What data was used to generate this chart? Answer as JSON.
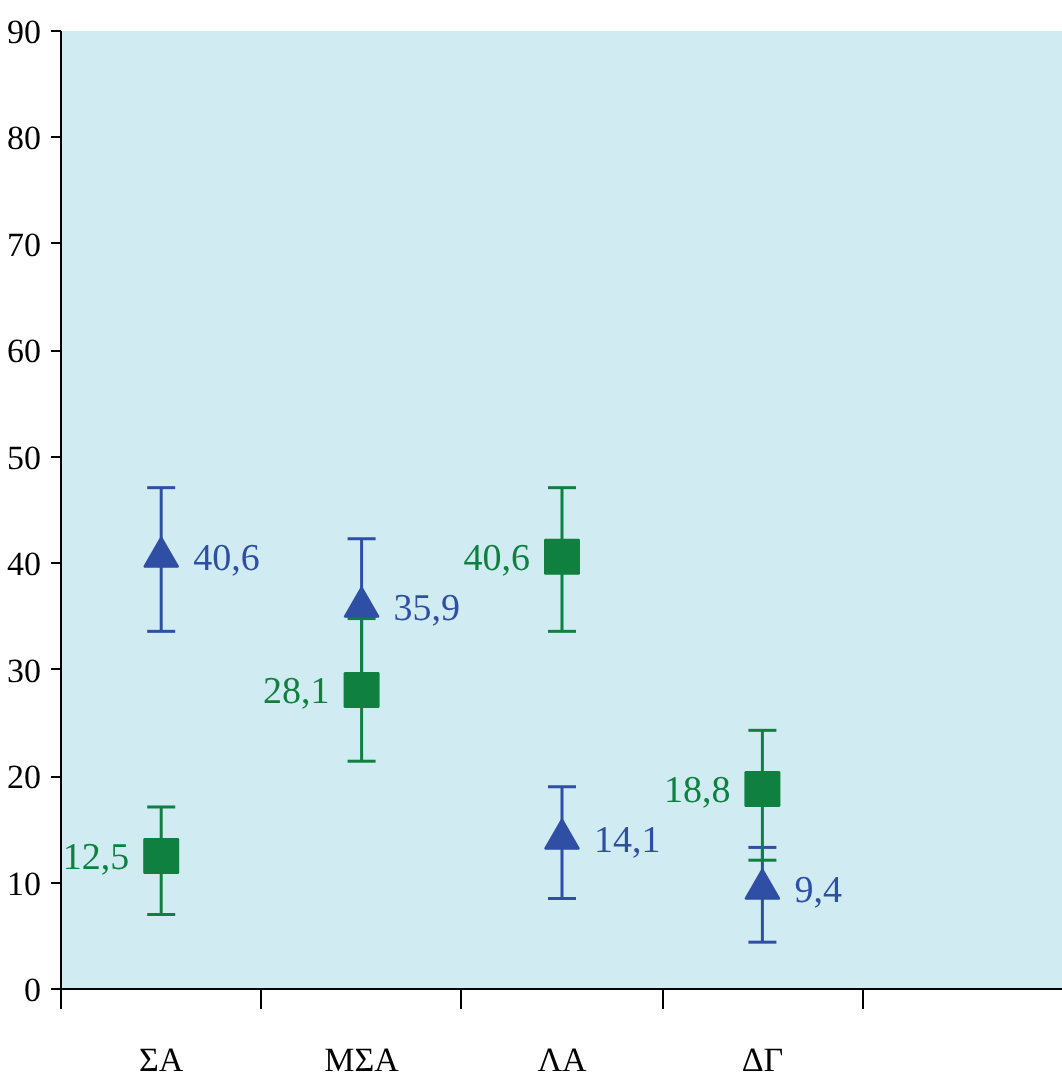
{
  "chart_data": {
    "type": "scatter",
    "categories": [
      "ΣΑ",
      "ΜΣΑ",
      "ΛΑ",
      "ΔΓ"
    ],
    "series": [
      {
        "color": "#2e4fa3",
        "marker": "triangle",
        "values": [
          40.6,
          35.9,
          14.1,
          9.4
        ],
        "errors": [
          [
            33.6,
            47.1
          ],
          [
            29.5,
            42.3
          ],
          [
            8.5,
            19.0
          ],
          [
            4.4,
            13.3
          ]
        ],
        "value_labels": [
          "40,6",
          "35,9",
          "14,1",
          "9,4"
        ]
      },
      {
        "color": "#108040",
        "marker": "square",
        "values": [
          12.5,
          28.1,
          40.6,
          18.8
        ],
        "errors": [
          [
            7.0,
            17.1
          ],
          [
            21.4,
            34.8
          ],
          [
            33.6,
            47.1
          ],
          [
            12.1,
            24.3
          ]
        ],
        "value_labels": [
          "12,5",
          "28,1",
          "40,6",
          "18,8"
        ]
      }
    ],
    "ylim": [
      0,
      90
    ],
    "yticks": [
      0,
      10,
      20,
      30,
      40,
      50,
      60,
      70,
      80,
      90
    ],
    "grid": false
  }
}
